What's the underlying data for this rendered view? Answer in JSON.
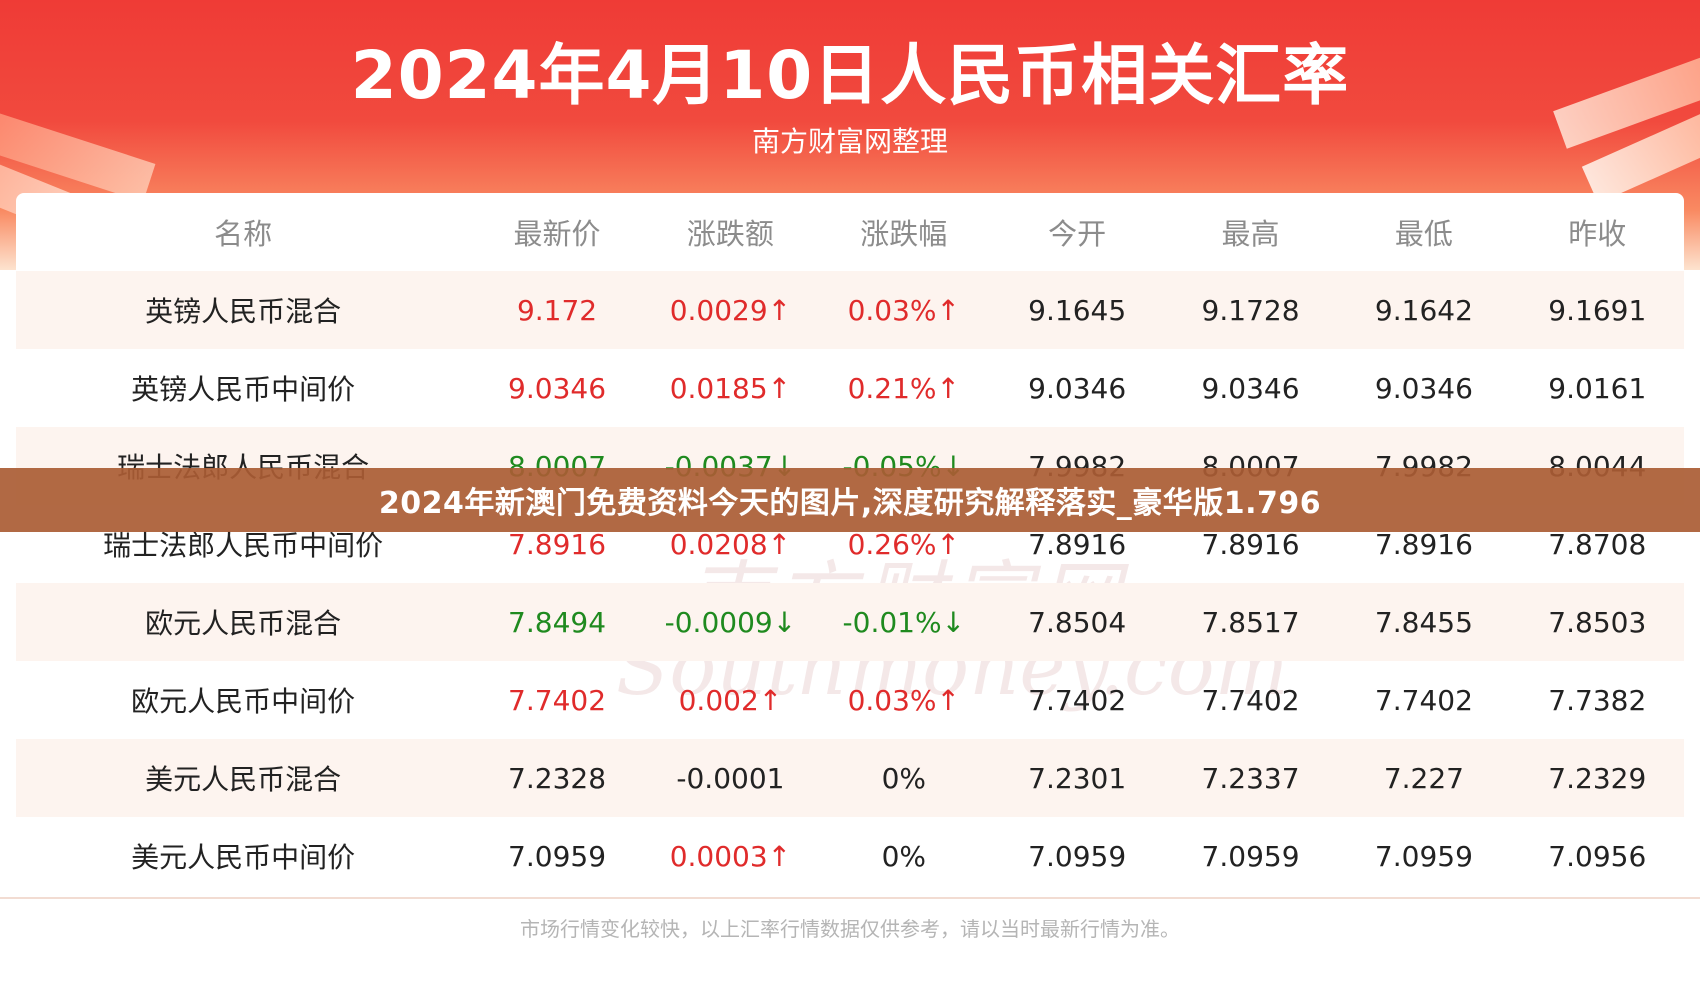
{
  "header": {
    "title": "2024年4月10日人民币相关汇率",
    "subtitle": "南方财富网整理"
  },
  "table": {
    "columns": [
      "名称",
      "最新价",
      "涨跌额",
      "涨跌幅",
      "今开",
      "最高",
      "最低",
      "昨收"
    ],
    "rows": [
      {
        "name": "英镑人民币混合",
        "latest": "9.172",
        "change": "0.0029↑",
        "pct": "0.03%↑",
        "open": "9.1645",
        "high": "9.1728",
        "low": "9.1642",
        "prev": "9.1691",
        "trend": "up"
      },
      {
        "name": "英镑人民币中间价",
        "latest": "9.0346",
        "change": "0.0185↑",
        "pct": "0.21%↑",
        "open": "9.0346",
        "high": "9.0346",
        "low": "9.0346",
        "prev": "9.0161",
        "trend": "up"
      },
      {
        "name": "瑞士法郎人民币混合",
        "latest": "8.0007",
        "change": "-0.0037↓",
        "pct": "-0.05%↓",
        "open": "7.9982",
        "high": "8.0007",
        "low": "7.9982",
        "prev": "8.0044",
        "trend": "down"
      },
      {
        "name": "瑞士法郎人民币中间价",
        "latest": "7.8916",
        "change": "0.0208↑",
        "pct": "0.26%↑",
        "open": "7.8916",
        "high": "7.8916",
        "low": "7.8916",
        "prev": "7.8708",
        "trend": "up"
      },
      {
        "name": "欧元人民币混合",
        "latest": "7.8494",
        "change": "-0.0009↓",
        "pct": "-0.01%↓",
        "open": "7.8504",
        "high": "7.8517",
        "low": "7.8455",
        "prev": "7.8503",
        "trend": "down"
      },
      {
        "name": "欧元人民币中间价",
        "latest": "7.7402",
        "change": "0.002↑",
        "pct": "0.03%↑",
        "open": "7.7402",
        "high": "7.7402",
        "low": "7.7402",
        "prev": "7.7382",
        "trend": "up"
      },
      {
        "name": "美元人民币混合",
        "latest": "7.2328",
        "change": "-0.0001",
        "pct": "0%",
        "open": "7.2301",
        "high": "7.2337",
        "low": "7.227",
        "prev": "7.2329",
        "trend": "flat"
      },
      {
        "name": "美元人民币中间价",
        "latest": "7.0959",
        "change": "0.0003↑",
        "pct": "0%",
        "open": "7.0959",
        "high": "7.0959",
        "low": "7.0959",
        "prev": "7.0956",
        "trend": "mixed"
      }
    ]
  },
  "watermark": {
    "cn": "南方财富网",
    "en": "Southmoney.com"
  },
  "footer": {
    "note": "市场行情变化较快，以上汇率行情数据仅供参考，请以当时最新行情为准。"
  },
  "overlay": {
    "text": "2024年新澳门免费资料今天的图片,深度研究解释落实_豪华版1.796"
  },
  "colors": {
    "up": "#e02b2b",
    "down": "#1f8a1f",
    "header_red": "#ef3b36",
    "overlay": "#aa5c34"
  }
}
